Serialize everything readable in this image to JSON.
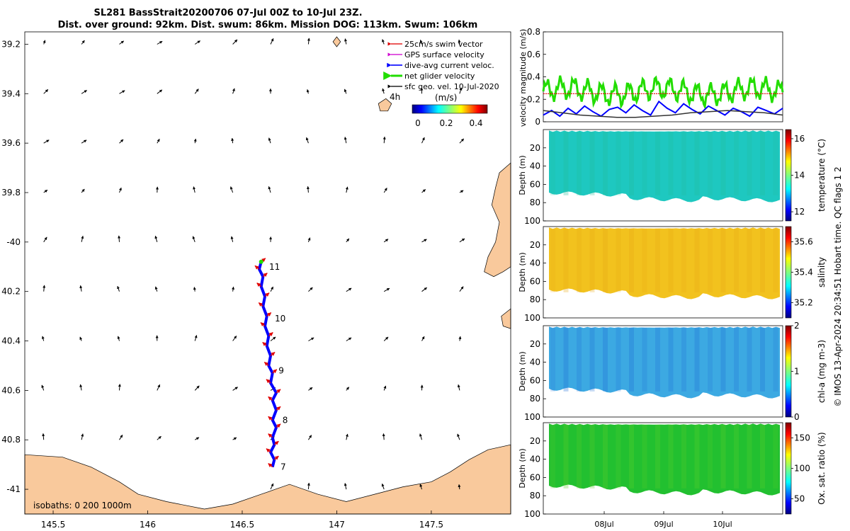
{
  "title_line1": "SL281 BassStrait20200706 07-Jul 00Z to 10-Jul 23Z.",
  "title_line2": "Dist. over ground: 92km. Dist. swum: 86km. Mission DOG: 113km. Swum: 106km",
  "credit": "© IMOS 13-Apr-2024 20:34:51 Hobart time. QC flags 1  2",
  "colors": {
    "land": "#f9c99c",
    "swim_vector": "#e00000",
    "gps_velocity": "#d000d0",
    "dive_avg": "#0000ff",
    "net_velocity": "#22dd00",
    "sfc_geo": "#000000",
    "temperature_field": "#1ec8c0",
    "salinity_field": "#f2c21e",
    "chla_field": "#3ca9e2",
    "oxygen_field": "#22c030"
  },
  "chart_data": [
    {
      "type": "map",
      "name": "track-map",
      "xlim": [
        145.35,
        147.92
      ],
      "ylim": [
        -41.1,
        -39.15
      ],
      "x_ticks": [
        145.5,
        146,
        146.5,
        147,
        147.5
      ],
      "x_tick_labels": [
        "145.5",
        "146",
        "146.5",
        "147",
        "147.5"
      ],
      "y_ticks": [
        -39.2,
        -39.4,
        -39.6,
        -39.8,
        -40,
        -40.2,
        -40.4,
        -40.6,
        -40.8,
        -41
      ],
      "y_tick_labels": [
        "39.2",
        "39.4",
        "39.6",
        "39.8",
        "-40",
        "40.2",
        "40.4",
        "40.6",
        "40.8",
        "-41"
      ],
      "legend": {
        "placement": "top-right",
        "entries": [
          "25cm/s swim vector",
          "GPS surface velocity",
          "dive-avg current veloc.",
          "net glider velocity",
          "sfc geo. vel. 10-Jul-2020"
        ],
        "colorbar_prefix": "4h",
        "colorbar_unit": "(m/s)",
        "colorbar_ticks": [
          "0",
          "0.2",
          "0.4"
        ],
        "colorbar_range": [
          0,
          0.5
        ]
      },
      "isobaths_label": "isobaths: 0   200  1000m",
      "track": [
        [
          146.66,
          -40.91
        ],
        [
          146.67,
          -40.88
        ],
        [
          146.65,
          -40.85
        ],
        [
          146.67,
          -40.82
        ],
        [
          146.66,
          -40.79
        ],
        [
          146.68,
          -40.75
        ],
        [
          146.66,
          -40.72
        ],
        [
          146.68,
          -40.68
        ],
        [
          146.66,
          -40.64
        ],
        [
          146.68,
          -40.61
        ],
        [
          146.65,
          -40.57
        ],
        [
          146.66,
          -40.53
        ],
        [
          146.64,
          -40.5
        ],
        [
          146.65,
          -40.46
        ],
        [
          146.63,
          -40.42
        ],
        [
          146.64,
          -40.38
        ],
        [
          146.62,
          -40.34
        ],
        [
          146.63,
          -40.3
        ],
        [
          146.61,
          -40.26
        ],
        [
          146.62,
          -40.22
        ],
        [
          146.6,
          -40.18
        ],
        [
          146.61,
          -40.14
        ],
        [
          146.59,
          -40.11
        ],
        [
          146.6,
          -40.08
        ]
      ],
      "day_labels": [
        {
          "label": "7",
          "lon": 146.68,
          "lat": -40.91
        },
        {
          "label": "8",
          "lon": 146.69,
          "lat": -40.72
        },
        {
          "label": "9",
          "lon": 146.67,
          "lat": -40.52
        },
        {
          "label": "10",
          "lon": 146.65,
          "lat": -40.31
        },
        {
          "label": "11",
          "lon": 146.62,
          "lat": -40.1
        }
      ],
      "sfc_geo_grid": {
        "lons": [
          145.45,
          145.65,
          145.85,
          146.05,
          146.25,
          146.45,
          146.65,
          146.85,
          147.05,
          147.25,
          147.45,
          147.65
        ],
        "lats": [
          -39.2,
          -39.4,
          -39.6,
          -39.8,
          -40.0,
          -40.2,
          -40.4,
          -40.6,
          -40.8,
          -41.0
        ]
      },
      "land": [
        {
          "name": "tasmania-north-coast",
          "points": [
            [
              145.35,
              -40.86
            ],
            [
              145.55,
              -40.87
            ],
            [
              145.7,
              -40.91
            ],
            [
              145.85,
              -40.97
            ],
            [
              145.95,
              -41.02
            ],
            [
              146.1,
              -41.05
            ],
            [
              146.3,
              -41.08
            ],
            [
              146.45,
              -41.06
            ],
            [
              146.6,
              -41.02
            ],
            [
              146.75,
              -40.98
            ],
            [
              146.9,
              -41.02
            ],
            [
              147.05,
              -41.05
            ],
            [
              147.2,
              -41.02
            ],
            [
              147.35,
              -40.99
            ],
            [
              147.5,
              -40.97
            ],
            [
              147.6,
              -40.93
            ],
            [
              147.7,
              -40.88
            ],
            [
              147.8,
              -40.84
            ],
            [
              147.92,
              -40.82
            ],
            [
              147.92,
              -41.1
            ],
            [
              145.35,
              -41.1
            ]
          ]
        },
        {
          "name": "flinders-island",
          "points": [
            [
              147.92,
              -39.68
            ],
            [
              147.86,
              -39.72
            ],
            [
              147.84,
              -39.78
            ],
            [
              147.82,
              -39.85
            ],
            [
              147.86,
              -39.92
            ],
            [
              147.84,
              -40.0
            ],
            [
              147.8,
              -40.06
            ],
            [
              147.78,
              -40.12
            ],
            [
              147.83,
              -40.14
            ],
            [
              147.88,
              -40.12
            ],
            [
              147.92,
              -40.1
            ]
          ]
        },
        {
          "name": "kent-group-island",
          "points": [
            [
              147.22,
              -39.44
            ],
            [
              147.26,
              -39.42
            ],
            [
              147.29,
              -39.44
            ],
            [
              147.27,
              -39.47
            ],
            [
              147.23,
              -39.47
            ]
          ]
        },
        {
          "name": "hogan-island",
          "points": [
            [
              146.98,
              -39.19
            ],
            [
              147.0,
              -39.17
            ],
            [
              147.02,
              -39.19
            ],
            [
              147.0,
              -39.21
            ]
          ]
        },
        {
          "name": "cape-barren-island",
          "points": [
            [
              147.92,
              -40.27
            ],
            [
              147.87,
              -40.3
            ],
            [
              147.88,
              -40.34
            ],
            [
              147.92,
              -40.35
            ]
          ]
        }
      ]
    },
    {
      "type": "line",
      "name": "velocity-panel",
      "ylabel": "velocity magnitude (m/s)",
      "ylim": [
        0,
        0.8
      ],
      "y_ticks": [
        "0",
        "0.2",
        "0.4",
        "0.6",
        "0.8"
      ],
      "xlim": [
        0,
        100
      ],
      "series": [
        {
          "name": "net glider velocity",
          "color": "#22dd00",
          "baseline": 0.27,
          "amplitude": 0.08
        },
        {
          "name": "25cm/s swim vector",
          "color": "#e00000",
          "constant": 0.25
        },
        {
          "name": "dive-avg current veloc.",
          "color": "#0000ff",
          "values": [
            0.06,
            0.1,
            0.05,
            0.12,
            0.07,
            0.14,
            0.09,
            0.05,
            0.11,
            0.13,
            0.08,
            0.15,
            0.1,
            0.06,
            0.18,
            0.12,
            0.08,
            0.16,
            0.11,
            0.07,
            0.14,
            0.1,
            0.06,
            0.12,
            0.09,
            0.05,
            0.13,
            0.1,
            0.07,
            0.12
          ]
        },
        {
          "name": "sfc geo. vel.",
          "color": "#333333",
          "values": [
            0.1,
            0.08,
            0.06,
            0.05,
            0.04,
            0.04,
            0.05,
            0.06,
            0.08,
            0.09,
            0.1,
            0.09,
            0.08,
            0.06
          ]
        }
      ]
    },
    {
      "type": "heatmap",
      "name": "temperature-section",
      "ylabel": "Depth (m)",
      "cbar_label": "temperature (°C)",
      "cbar_ticks": [
        "12",
        "14",
        "16"
      ],
      "cbar_range": [
        11.5,
        16.5
      ],
      "y_ticks": [
        "20",
        "40",
        "60",
        "80",
        "100"
      ],
      "ylim": [
        0,
        100
      ]
    },
    {
      "type": "heatmap",
      "name": "salinity-section",
      "ylabel": "Depth (m)",
      "cbar_label": "salinity",
      "cbar_ticks": [
        "35.2",
        "35.4",
        "35.6"
      ],
      "cbar_range": [
        35.1,
        35.7
      ],
      "y_ticks": [
        "20",
        "40",
        "60",
        "80",
        "100"
      ],
      "ylim": [
        0,
        100
      ]
    },
    {
      "type": "heatmap",
      "name": "chla-section",
      "ylabel": "Depth (m)",
      "cbar_label": "chl-a (mg m-3)",
      "cbar_ticks": [
        "0",
        "1",
        "2"
      ],
      "cbar_range": [
        0,
        2
      ],
      "y_ticks": [
        "20",
        "40",
        "60",
        "80",
        "100"
      ],
      "ylim": [
        0,
        100
      ]
    },
    {
      "type": "heatmap",
      "name": "oxygen-section",
      "ylabel": "Depth (m)",
      "cbar_label": "Ox. sat. ratio (%)",
      "cbar_ticks": [
        "50",
        "100",
        "150"
      ],
      "cbar_range": [
        25,
        175
      ],
      "y_ticks": [
        "20",
        "40",
        "60",
        "80",
        "100"
      ],
      "ylim": [
        0,
        100
      ],
      "x_ticks": [
        "08Jul",
        "09Jul",
        "10Jul"
      ]
    }
  ]
}
